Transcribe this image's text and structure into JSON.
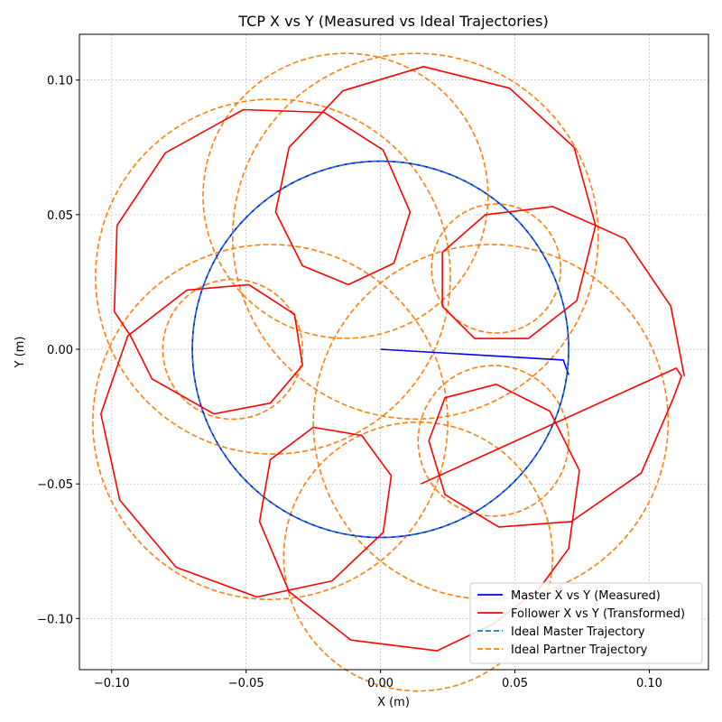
{
  "chart_data": {
    "type": "line",
    "title": "TCP X vs Y (Measured vs Ideal Trajectories)",
    "xlabel": "X (m)",
    "ylabel": "Y (m)",
    "xlim": [
      -0.112,
      0.122
    ],
    "ylim": [
      -0.119,
      0.117
    ],
    "xticks": [
      -0.1,
      -0.05,
      0.0,
      0.05,
      0.1
    ],
    "yticks": [
      -0.1,
      -0.05,
      0.0,
      0.05,
      0.1
    ],
    "xtick_labels": [
      "−0.10",
      "−0.05",
      "0.00",
      "0.05",
      "0.10"
    ],
    "ytick_labels": [
      "−0.10",
      "−0.05",
      "0.00",
      "0.05",
      "0.10"
    ],
    "grid": true,
    "legend_position": "lower-right",
    "colors": {
      "master": "#0000ff",
      "follower": "#ff0000",
      "ideal_master": "#1f77b4",
      "ideal_partner": "#ff7f0e",
      "grid": "#b0b0b0"
    },
    "series": [
      {
        "name": "Master X vs Y (Measured)",
        "style": "solid",
        "points": [
          [
            0.0,
            0.0
          ],
          [
            0.068,
            -0.004
          ],
          [
            0.07,
            -0.0095
          ]
        ],
        "circle": {
          "cx": 0.0,
          "cy": 0.0,
          "r": 0.07
        }
      },
      {
        "name": "Follower X vs Y (Transformed)",
        "style": "solid",
        "points": [
          [
            0.015,
            -0.05
          ],
          [
            0.11,
            -0.007
          ],
          [
            0.112,
            -0.01
          ],
          [
            0.109,
            -0.018
          ],
          [
            0.097,
            -0.046
          ],
          [
            0.071,
            -0.064
          ],
          [
            0.044,
            -0.066
          ],
          [
            0.024,
            -0.054
          ],
          [
            0.018,
            -0.034
          ],
          [
            0.024,
            -0.018
          ],
          [
            0.043,
            -0.013
          ],
          [
            0.063,
            -0.023
          ],
          [
            0.074,
            -0.045
          ],
          [
            0.07,
            -0.074
          ],
          [
            0.059,
            -0.089
          ],
          [
            0.042,
            -0.102
          ],
          [
            0.021,
            -0.112
          ],
          [
            -0.011,
            -0.108
          ],
          [
            -0.034,
            -0.09
          ],
          [
            -0.045,
            -0.064
          ],
          [
            -0.041,
            -0.041
          ],
          [
            -0.025,
            -0.029
          ],
          [
            -0.007,
            -0.032
          ],
          [
            0.004,
            -0.047
          ],
          [
            0.001,
            -0.068
          ],
          [
            -0.018,
            -0.086
          ],
          [
            -0.046,
            -0.092
          ],
          [
            -0.076,
            -0.081
          ],
          [
            -0.097,
            -0.056
          ],
          [
            -0.104,
            -0.024
          ],
          [
            -0.094,
            0.005
          ],
          [
            -0.072,
            0.022
          ],
          [
            -0.049,
            0.024
          ],
          [
            -0.032,
            0.013
          ],
          [
            -0.029,
            -0.006
          ],
          [
            -0.041,
            -0.02
          ],
          [
            -0.062,
            -0.024
          ],
          [
            -0.085,
            -0.011
          ],
          [
            -0.093,
            0.005
          ],
          [
            -0.099,
            0.014
          ],
          [
            -0.098,
            0.046
          ],
          [
            -0.08,
            0.073
          ],
          [
            -0.051,
            0.089
          ],
          [
            -0.021,
            0.088
          ],
          [
            0.001,
            0.074
          ],
          [
            0.011,
            0.051
          ],
          [
            0.005,
            0.032
          ],
          [
            -0.012,
            0.024
          ],
          [
            -0.029,
            0.031
          ],
          [
            -0.039,
            0.051
          ],
          [
            -0.034,
            0.075
          ],
          [
            -0.014,
            0.096
          ],
          [
            0.016,
            0.105
          ],
          [
            0.048,
            0.097
          ],
          [
            0.072,
            0.075
          ],
          [
            0.08,
            0.046
          ],
          [
            0.073,
            0.018
          ],
          [
            0.055,
            0.004
          ],
          [
            0.035,
            0.004
          ],
          [
            0.023,
            0.016
          ],
          [
            0.023,
            0.036
          ],
          [
            0.039,
            0.05
          ],
          [
            0.064,
            0.053
          ],
          [
            0.08,
            0.046
          ],
          [
            0.091,
            0.041
          ],
          [
            0.108,
            0.016
          ],
          [
            0.113,
            -0.01
          ]
        ]
      },
      {
        "name": "Ideal Master Trajectory",
        "style": "dashed",
        "circle": {
          "cx": 0.0,
          "cy": 0.0,
          "r": 0.07
        }
      },
      {
        "name": "Ideal Partner Trajectory",
        "style": "dashed",
        "circles": [
          {
            "cx": -0.041,
            "cy": -0.027,
            "r": 0.066
          },
          {
            "cx": -0.055,
            "cy": 0.0,
            "r": 0.026
          },
          {
            "cx": -0.04,
            "cy": 0.027,
            "r": 0.066
          },
          {
            "cx": -0.013,
            "cy": 0.057,
            "r": 0.053
          },
          {
            "cx": 0.013,
            "cy": 0.042,
            "r": 0.068
          },
          {
            "cx": 0.041,
            "cy": -0.027,
            "r": 0.066
          },
          {
            "cx": 0.042,
            "cy": -0.034,
            "r": 0.028
          },
          {
            "cx": 0.043,
            "cy": 0.03,
            "r": 0.024
          },
          {
            "cx": 0.014,
            "cy": -0.077,
            "r": 0.05
          }
        ]
      }
    ]
  }
}
